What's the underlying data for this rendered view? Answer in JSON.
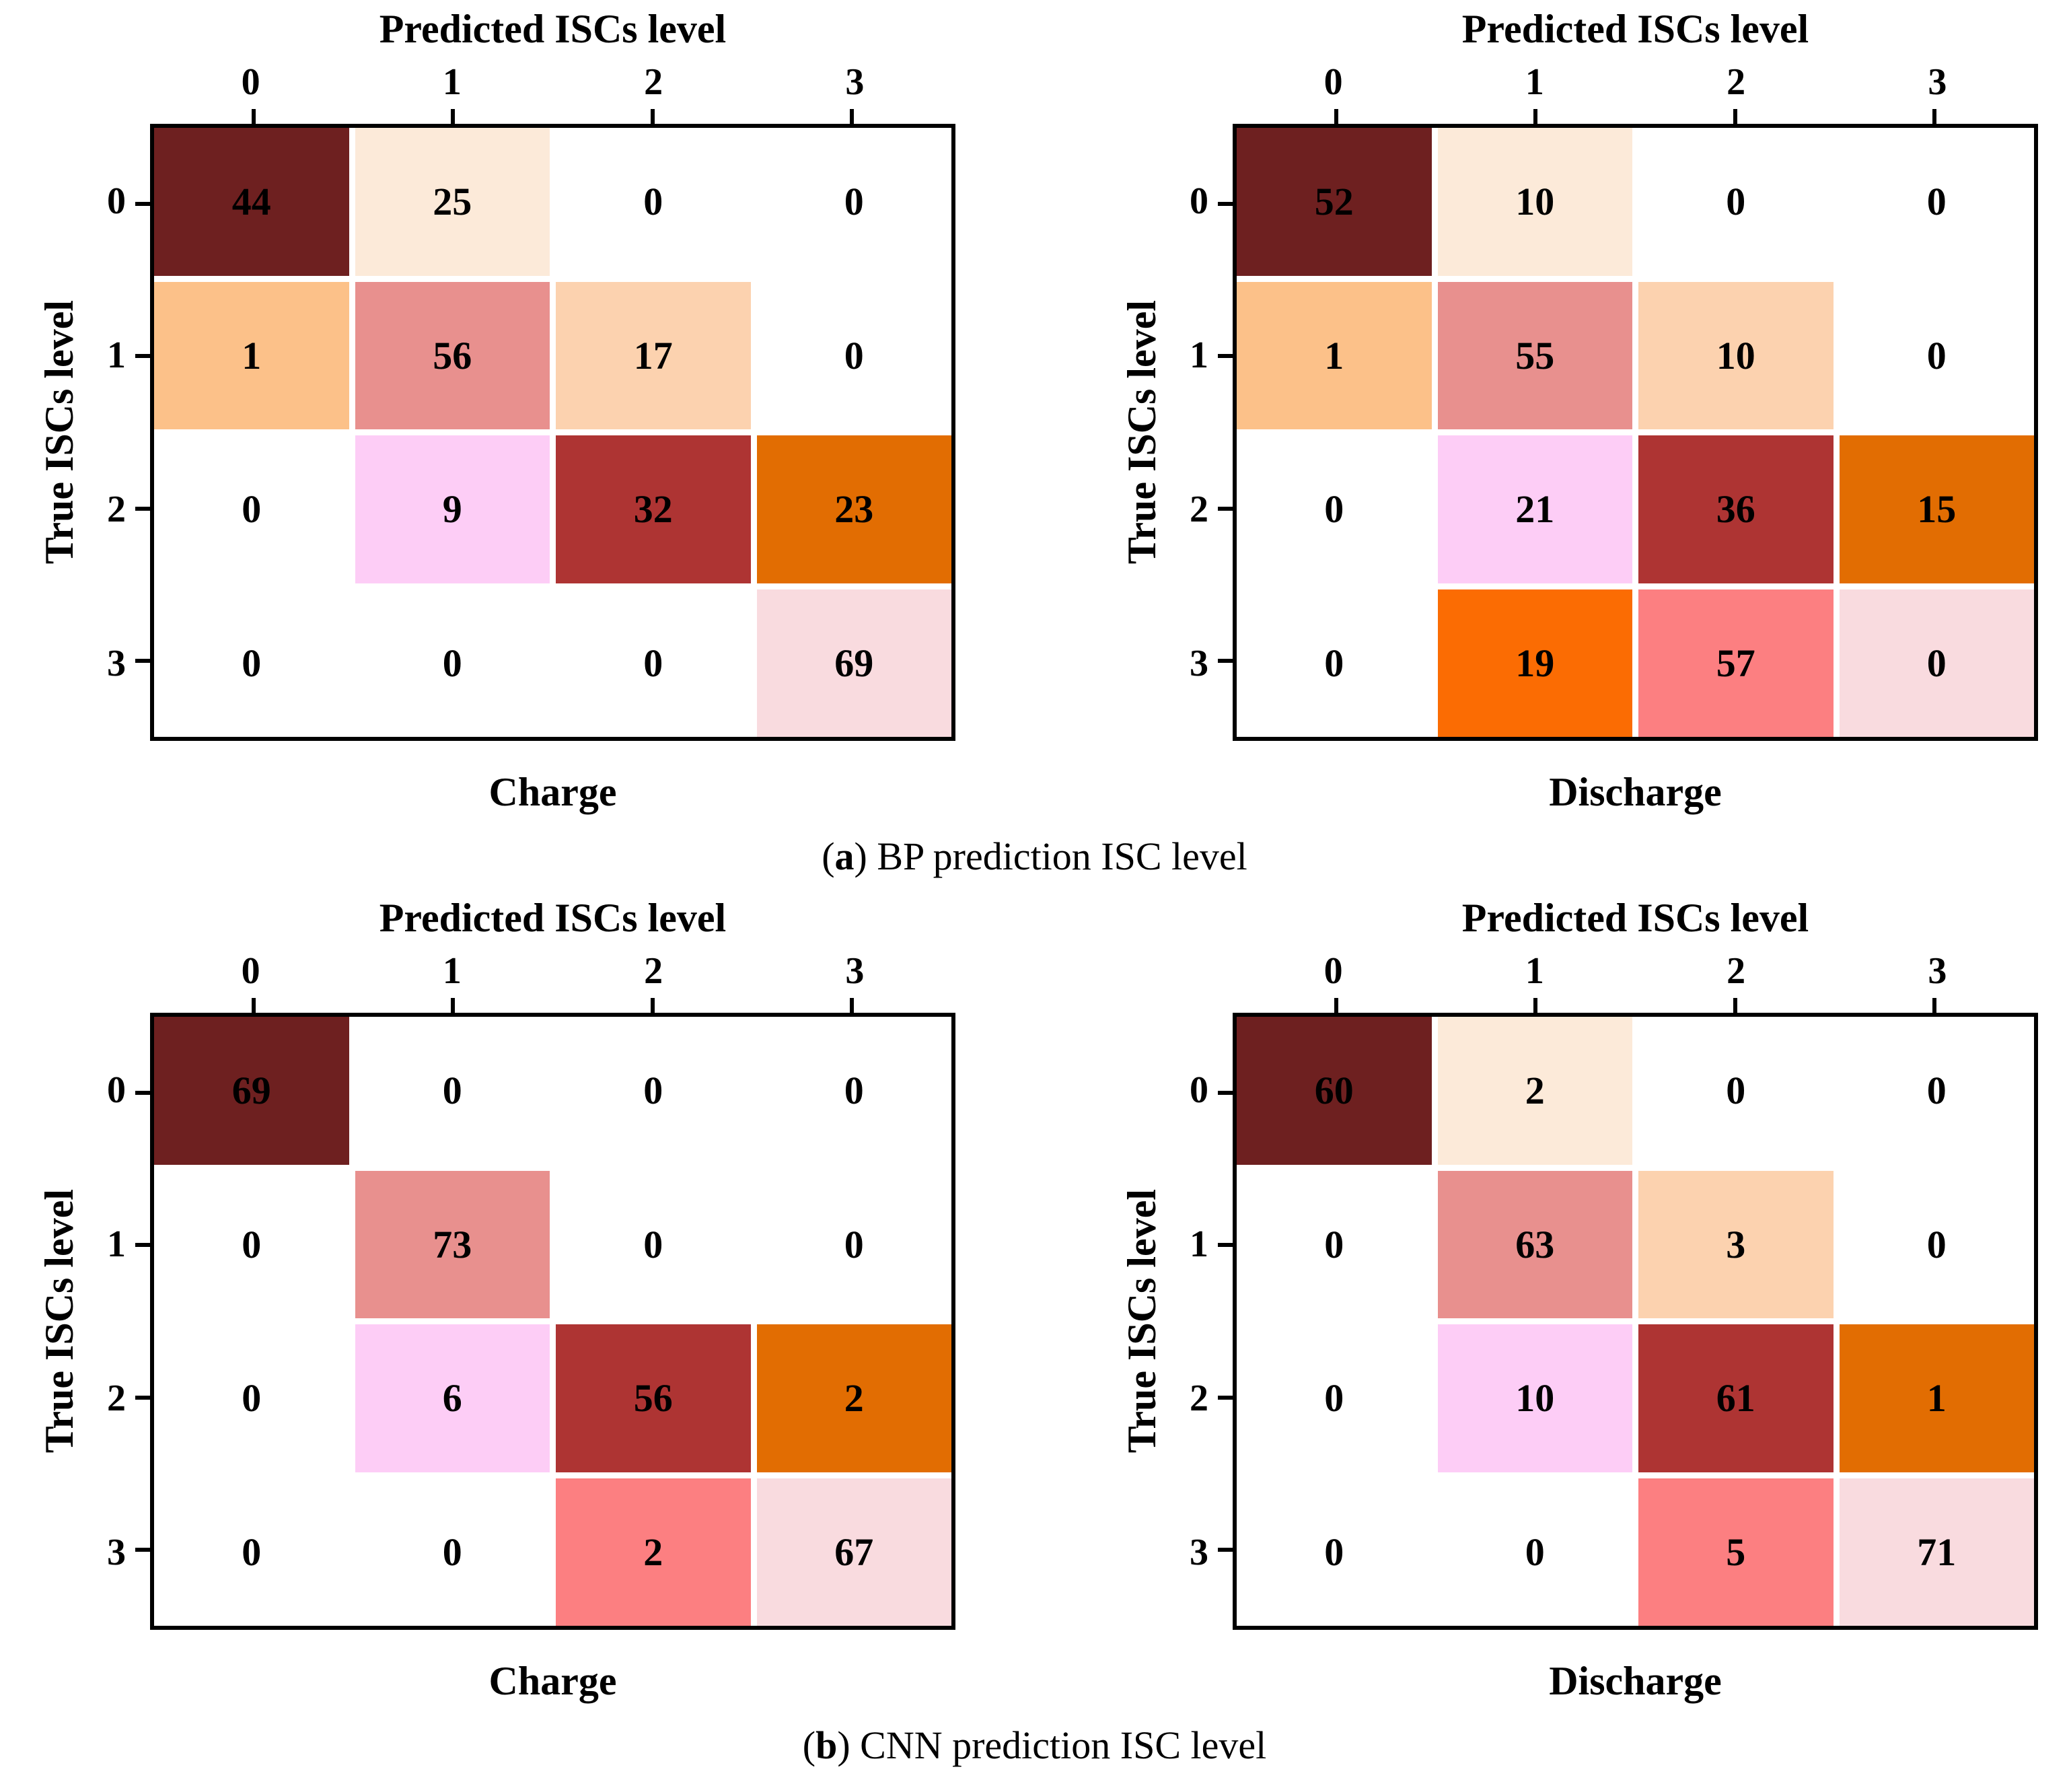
{
  "palette": {
    "maroon": "#6e2020",
    "cream": "#fcead9",
    "light_orange": "#fcc189",
    "salmon": "#e8908e",
    "peach": "#fcd2af",
    "light_magenta": "#fdcdf6",
    "brick_red": "#ae3433",
    "dark_orange": "#e26d02",
    "bright_orange": "#fb6c03",
    "coral": "#fc7f81",
    "pale_pink": "#f9dbdf",
    "white": "#ffffff"
  },
  "axis": {
    "x_title": "Predicted ISCs level",
    "y_title": "True ISCs level",
    "ticks": [
      "0",
      "1",
      "2",
      "3"
    ]
  },
  "figures": [
    {
      "caption": {
        "pre": "(",
        "letter": "a",
        "post": ") BP prediction ISC level"
      },
      "panels": [
        {
          "label": "Charge",
          "rows": [
            [
              {
                "v": "44",
                "c": "maroon"
              },
              {
                "v": "25",
                "c": "cream"
              },
              {
                "v": "0",
                "c": "white"
              },
              {
                "v": "0",
                "c": "white"
              }
            ],
            [
              {
                "v": "1",
                "c": "light_orange"
              },
              {
                "v": "56",
                "c": "salmon"
              },
              {
                "v": "17",
                "c": "peach"
              },
              {
                "v": "0",
                "c": "white"
              }
            ],
            [
              {
                "v": "0",
                "c": "white"
              },
              {
                "v": "9",
                "c": "light_magenta"
              },
              {
                "v": "32",
                "c": "brick_red"
              },
              {
                "v": "23",
                "c": "dark_orange"
              }
            ],
            [
              {
                "v": "0",
                "c": "white"
              },
              {
                "v": "0",
                "c": "white"
              },
              {
                "v": "0",
                "c": "white"
              },
              {
                "v": "69",
                "c": "pale_pink"
              }
            ]
          ]
        },
        {
          "label": "Discharge",
          "rows": [
            [
              {
                "v": "52",
                "c": "maroon"
              },
              {
                "v": "10",
                "c": "cream"
              },
              {
                "v": "0",
                "c": "white"
              },
              {
                "v": "0",
                "c": "white"
              }
            ],
            [
              {
                "v": "1",
                "c": "light_orange"
              },
              {
                "v": "55",
                "c": "salmon"
              },
              {
                "v": "10",
                "c": "peach"
              },
              {
                "v": "0",
                "c": "white"
              }
            ],
            [
              {
                "v": "0",
                "c": "white"
              },
              {
                "v": "21",
                "c": "light_magenta"
              },
              {
                "v": "36",
                "c": "brick_red"
              },
              {
                "v": "15",
                "c": "dark_orange"
              }
            ],
            [
              {
                "v": "0",
                "c": "white"
              },
              {
                "v": "19",
                "c": "bright_orange"
              },
              {
                "v": "57",
                "c": "coral"
              },
              {
                "v": "0",
                "c": "pale_pink"
              }
            ]
          ]
        }
      ]
    },
    {
      "caption": {
        "pre": "(",
        "letter": "b",
        "post": ") CNN prediction ISC level"
      },
      "panels": [
        {
          "label": "Charge",
          "rows": [
            [
              {
                "v": "69",
                "c": "maroon"
              },
              {
                "v": "0",
                "c": "white"
              },
              {
                "v": "0",
                "c": "white"
              },
              {
                "v": "0",
                "c": "white"
              }
            ],
            [
              {
                "v": "0",
                "c": "white"
              },
              {
                "v": "73",
                "c": "salmon"
              },
              {
                "v": "0",
                "c": "white"
              },
              {
                "v": "0",
                "c": "white"
              }
            ],
            [
              {
                "v": "0",
                "c": "white"
              },
              {
                "v": "6",
                "c": "light_magenta"
              },
              {
                "v": "56",
                "c": "brick_red"
              },
              {
                "v": "2",
                "c": "dark_orange"
              }
            ],
            [
              {
                "v": "0",
                "c": "white"
              },
              {
                "v": "0",
                "c": "white"
              },
              {
                "v": "2",
                "c": "coral"
              },
              {
                "v": "67",
                "c": "pale_pink"
              }
            ]
          ]
        },
        {
          "label": "Discharge",
          "rows": [
            [
              {
                "v": "60",
                "c": "maroon"
              },
              {
                "v": "2",
                "c": "cream"
              },
              {
                "v": "0",
                "c": "white"
              },
              {
                "v": "0",
                "c": "white"
              }
            ],
            [
              {
                "v": "0",
                "c": "white"
              },
              {
                "v": "63",
                "c": "salmon"
              },
              {
                "v": "3",
                "c": "peach"
              },
              {
                "v": "0",
                "c": "white"
              }
            ],
            [
              {
                "v": "0",
                "c": "white"
              },
              {
                "v": "10",
                "c": "light_magenta"
              },
              {
                "v": "61",
                "c": "brick_red"
              },
              {
                "v": "1",
                "c": "dark_orange"
              }
            ],
            [
              {
                "v": "0",
                "c": "white"
              },
              {
                "v": "0",
                "c": "white"
              },
              {
                "v": "5",
                "c": "coral"
              },
              {
                "v": "71",
                "c": "pale_pink"
              }
            ]
          ]
        }
      ]
    }
  ],
  "chart_data": [
    {
      "type": "heatmap",
      "title": "BP prediction ISC level - Charge",
      "xlabel": "Predicted ISCs level",
      "ylabel": "True ISCs level",
      "x_labels": [
        "0",
        "1",
        "2",
        "3"
      ],
      "y_labels": [
        "0",
        "1",
        "2",
        "3"
      ],
      "values": [
        [
          44,
          25,
          0,
          0
        ],
        [
          1,
          56,
          17,
          0
        ],
        [
          0,
          9,
          32,
          23
        ],
        [
          0,
          0,
          0,
          69
        ]
      ],
      "legend": "none",
      "grid": "off"
    },
    {
      "type": "heatmap",
      "title": "BP prediction ISC level - Discharge",
      "xlabel": "Predicted ISCs level",
      "ylabel": "True ISCs level",
      "x_labels": [
        "0",
        "1",
        "2",
        "3"
      ],
      "y_labels": [
        "0",
        "1",
        "2",
        "3"
      ],
      "values": [
        [
          52,
          10,
          0,
          0
        ],
        [
          1,
          55,
          10,
          0
        ],
        [
          0,
          21,
          36,
          15
        ],
        [
          0,
          19,
          57,
          0
        ]
      ],
      "legend": "none",
      "grid": "off"
    },
    {
      "type": "heatmap",
      "title": "CNN prediction ISC level - Charge",
      "xlabel": "Predicted ISCs level",
      "ylabel": "True ISCs level",
      "x_labels": [
        "0",
        "1",
        "2",
        "3"
      ],
      "y_labels": [
        "0",
        "1",
        "2",
        "3"
      ],
      "values": [
        [
          69,
          0,
          0,
          0
        ],
        [
          0,
          73,
          0,
          0
        ],
        [
          0,
          6,
          56,
          2
        ],
        [
          0,
          0,
          2,
          67
        ]
      ],
      "legend": "none",
      "grid": "off"
    },
    {
      "type": "heatmap",
      "title": "CNN prediction ISC level - Discharge",
      "xlabel": "Predicted ISCs level",
      "ylabel": "True ISCs level",
      "x_labels": [
        "0",
        "1",
        "2",
        "3"
      ],
      "y_labels": [
        "0",
        "1",
        "2",
        "3"
      ],
      "values": [
        [
          60,
          2,
          0,
          0
        ],
        [
          0,
          63,
          3,
          0
        ],
        [
          0,
          10,
          61,
          1
        ],
        [
          0,
          0,
          5,
          71
        ]
      ],
      "legend": "none",
      "grid": "off"
    }
  ]
}
